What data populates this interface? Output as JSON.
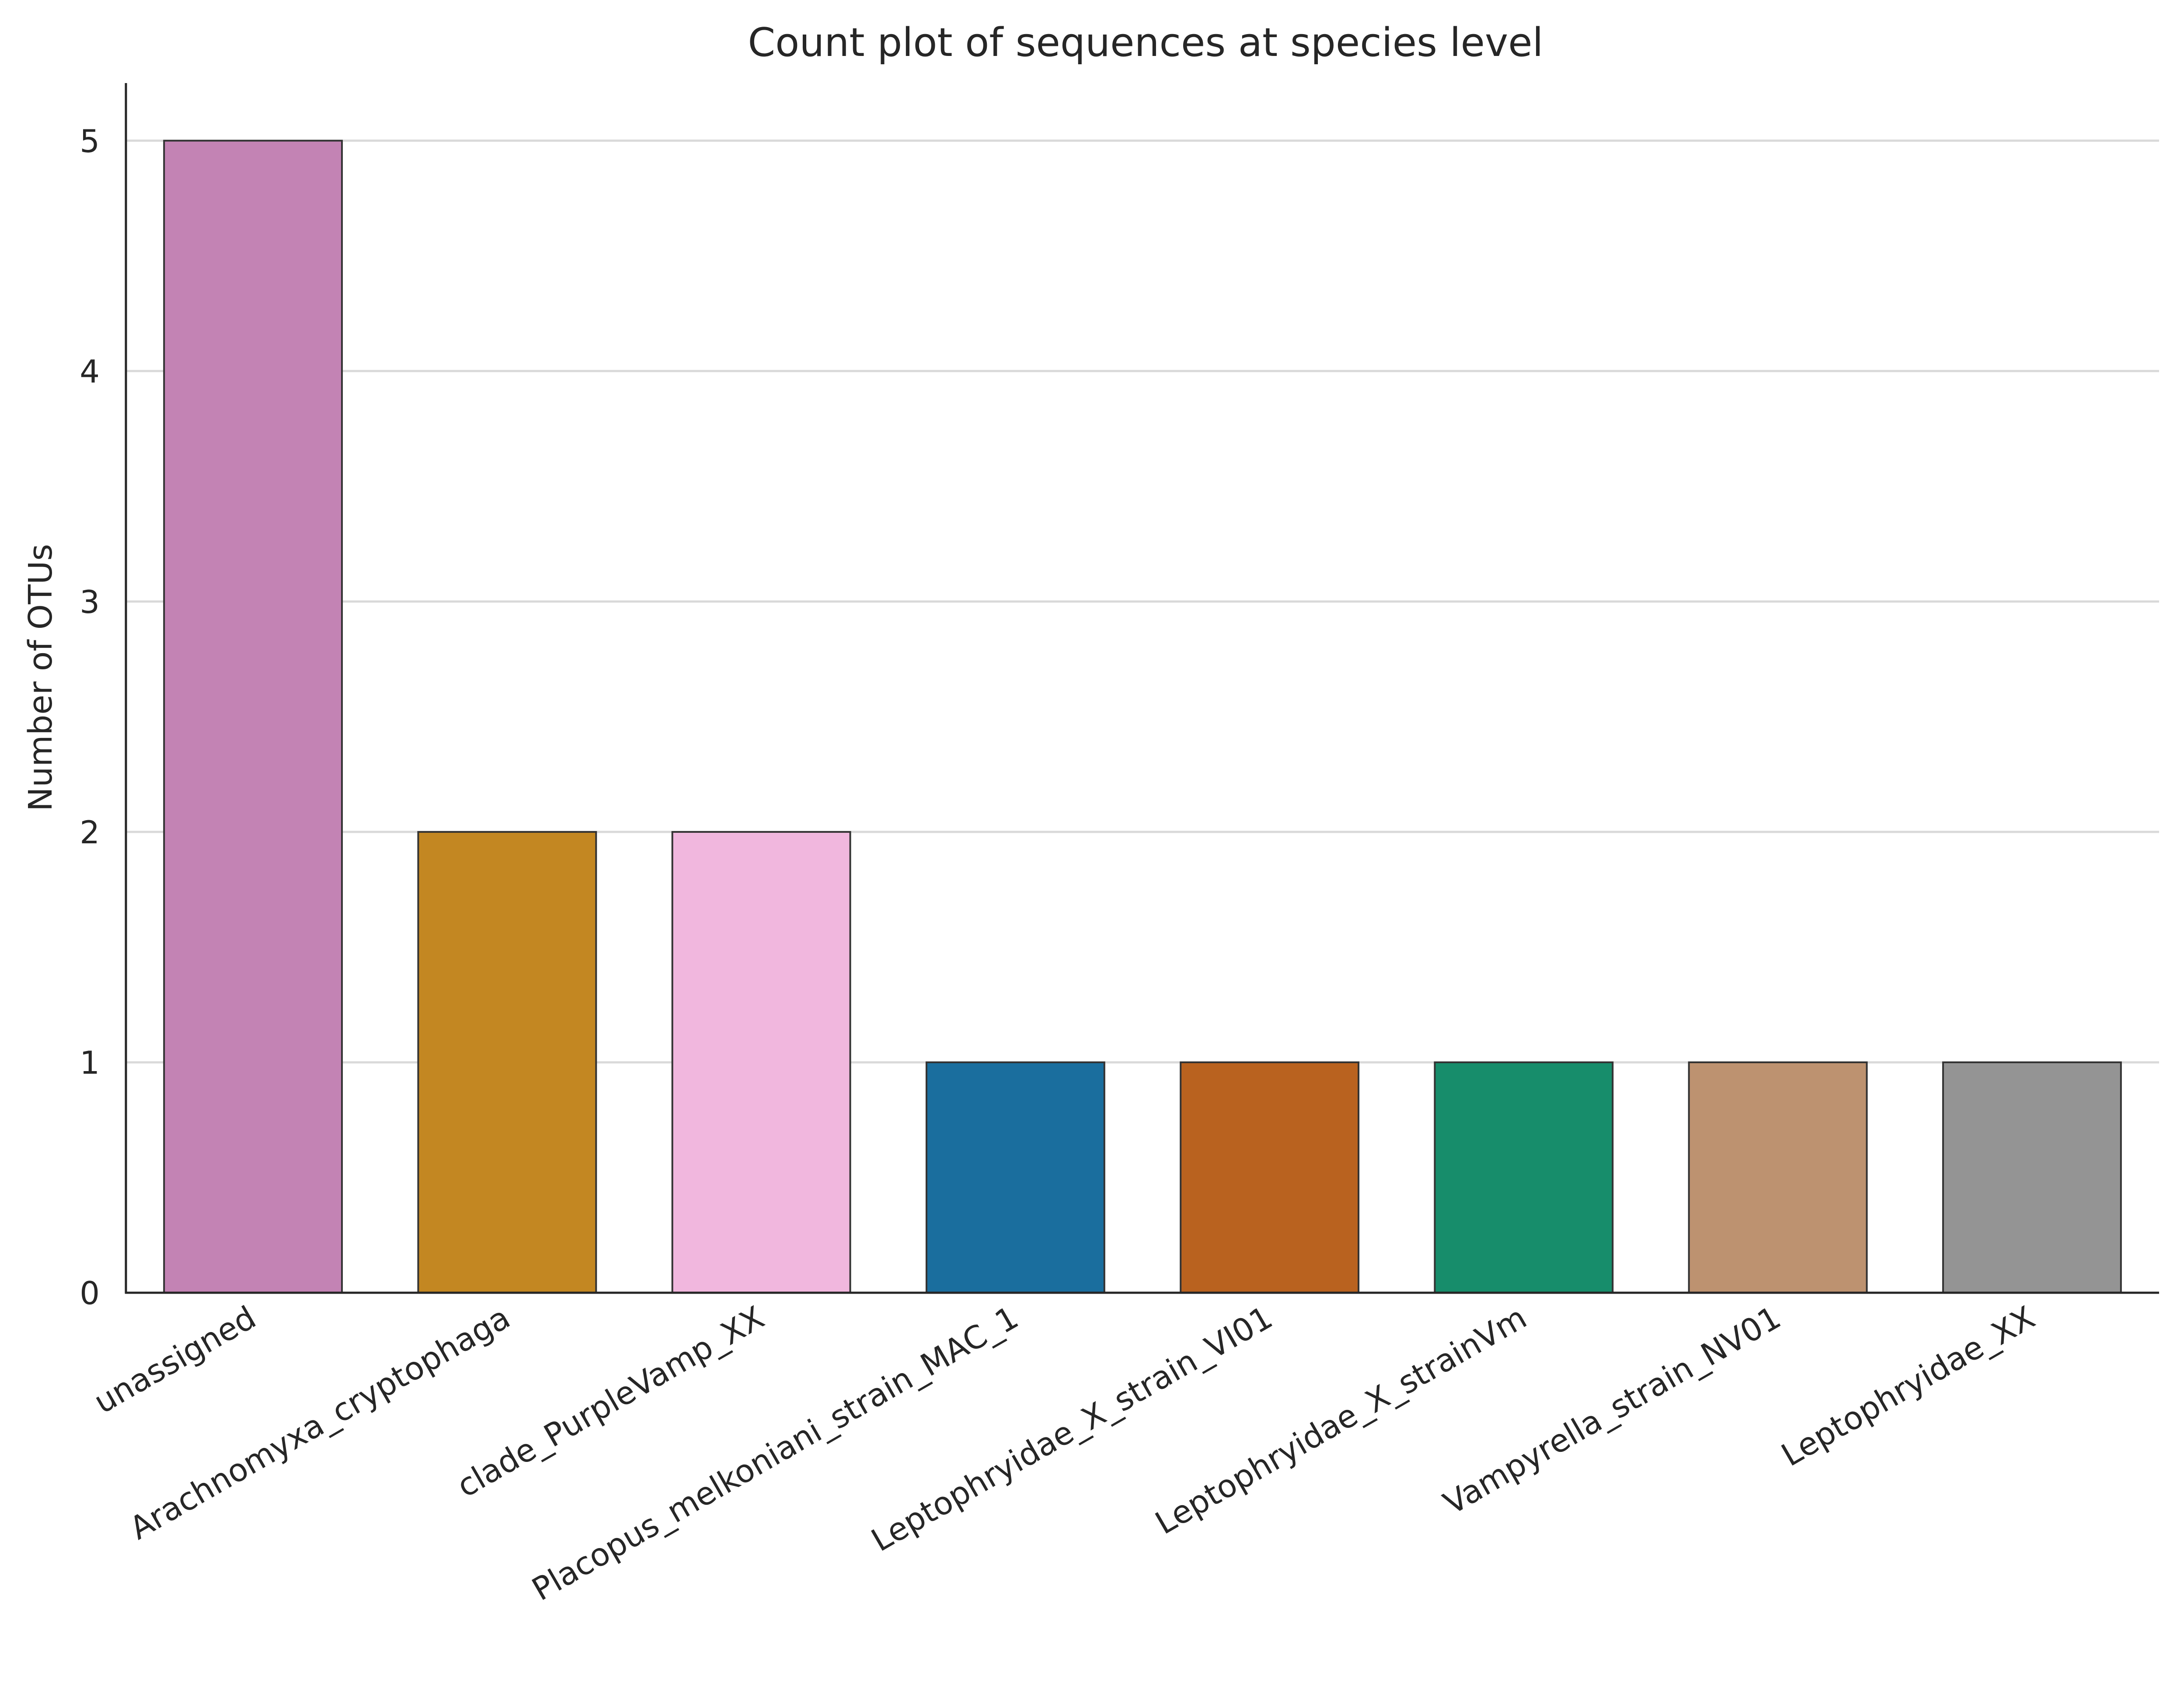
{
  "chart_data": {
    "type": "bar",
    "title": "Count plot of sequences at species level",
    "xlabel": "",
    "ylabel": "Number of OTUs",
    "ylim": [
      0,
      5.25
    ],
    "yticks": [
      "0",
      "1",
      "2",
      "3",
      "4",
      "5"
    ],
    "grid": "horizontal",
    "categories": [
      "unassigned",
      "Arachnomyxa_cryptophaga",
      "clade_PurpleVamp_XX",
      "Placopus_melkoniani_strain_MAC_1",
      "Leptophryidae_X_strain_VI01",
      "Leptophryidae_X_strainVm",
      "Vampyrella_strain_NV01",
      "Leptophryidae_XX"
    ],
    "values": [
      5,
      2,
      2,
      1,
      1,
      1,
      1,
      1
    ],
    "colors": [
      "#c383b4",
      "#c38722",
      "#f1b7de",
      "#1a6e9e",
      "#b9621f",
      "#178d6b",
      "#bd9270",
      "#949494"
    ]
  }
}
